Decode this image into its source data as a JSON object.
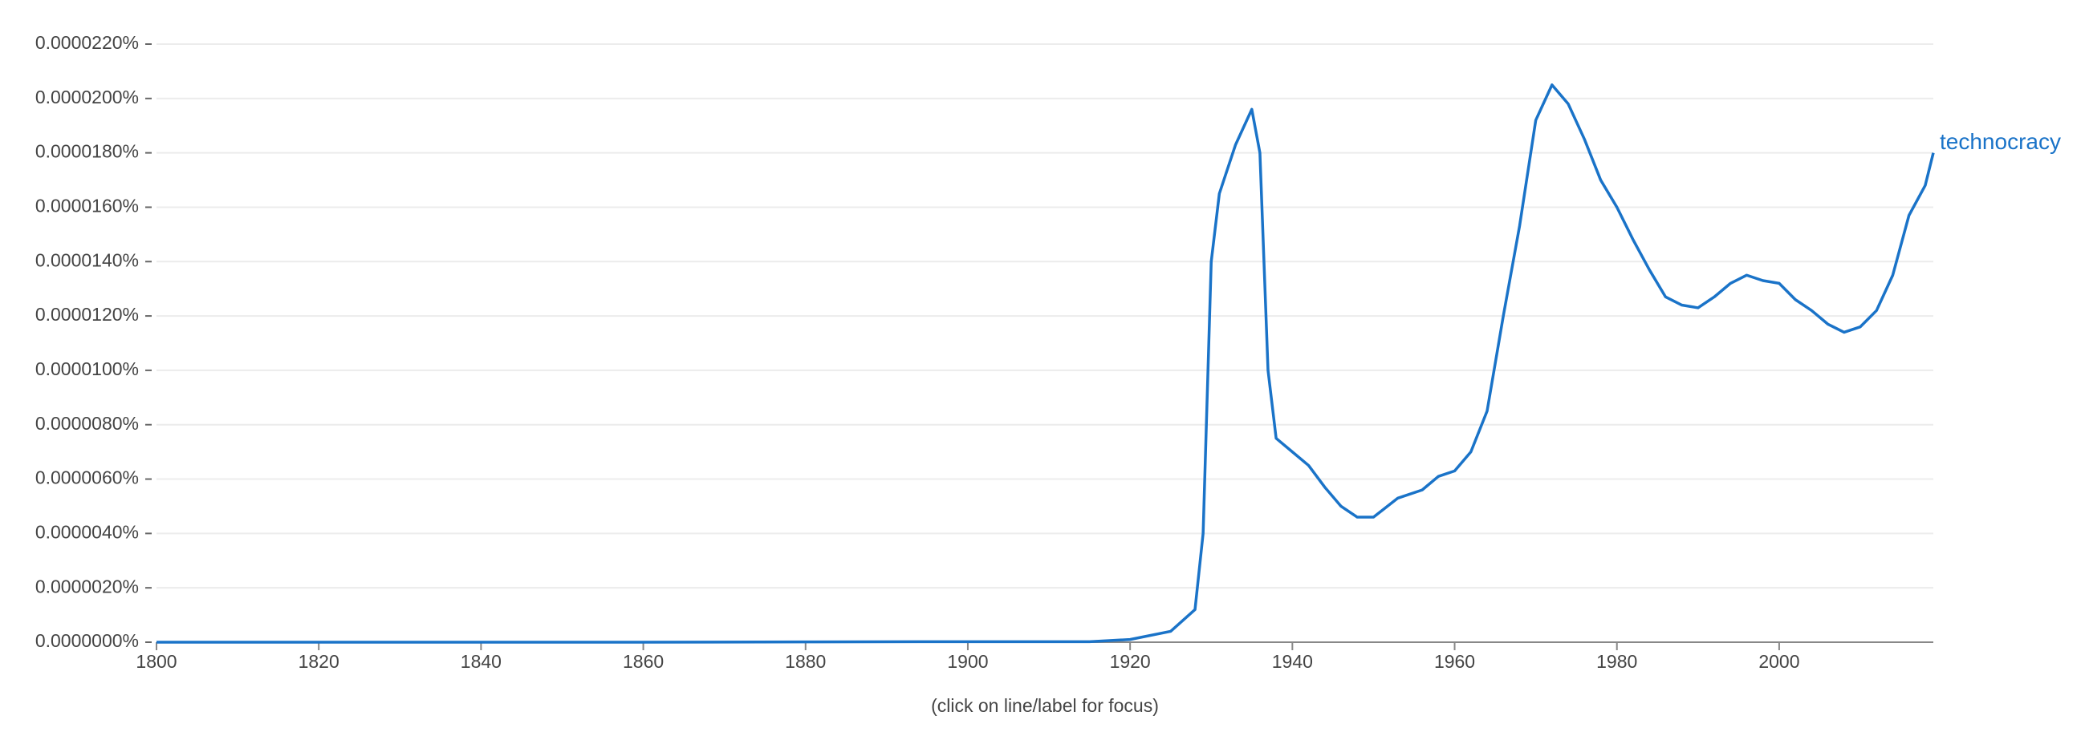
{
  "chart_data": {
    "type": "line",
    "x": [
      1800,
      1820,
      1840,
      1860,
      1880,
      1900,
      1915,
      1920,
      1925,
      1928,
      1929,
      1930,
      1931,
      1933,
      1935,
      1936,
      1937,
      1938,
      1940,
      1942,
      1944,
      1946,
      1948,
      1950,
      1953,
      1956,
      1958,
      1960,
      1962,
      1964,
      1966,
      1968,
      1970,
      1972,
      1974,
      1976,
      1978,
      1980,
      1982,
      1984,
      1986,
      1988,
      1990,
      1992,
      1994,
      1996,
      1998,
      2000,
      2002,
      2004,
      2006,
      2008,
      2010,
      2012,
      2014,
      2016,
      2018,
      2019
    ],
    "series": [
      {
        "name": "technocracy",
        "color": "#1a73c8",
        "values": [
          0,
          0,
          0,
          0,
          1e-08,
          2e-08,
          2e-08,
          1e-07,
          4e-07,
          1.2e-06,
          4e-06,
          1.4e-05,
          1.65e-05,
          1.83e-05,
          1.96e-05,
          1.8e-05,
          1e-05,
          7.5e-06,
          7e-06,
          6.5e-06,
          5.7e-06,
          5e-06,
          4.6e-06,
          4.6e-06,
          5.3e-06,
          5.6e-06,
          6.1e-06,
          6.3e-06,
          7e-06,
          8.5e-06,
          1.2e-05,
          1.53e-05,
          1.92e-05,
          2.05e-05,
          1.98e-05,
          1.85e-05,
          1.7e-05,
          1.6e-05,
          1.48e-05,
          1.37e-05,
          1.27e-05,
          1.24e-05,
          1.23e-05,
          1.27e-05,
          1.32e-05,
          1.35e-05,
          1.33e-05,
          1.32e-05,
          1.26e-05,
          1.22e-05,
          1.17e-05,
          1.14e-05,
          1.16e-05,
          1.22e-05,
          1.35e-05,
          1.57e-05,
          1.68e-05,
          1.8e-05
        ]
      }
    ],
    "xlim": [
      1800,
      2019
    ],
    "xticks": [
      1800,
      1820,
      1840,
      1860,
      1880,
      1900,
      1920,
      1940,
      1960,
      1980,
      2000
    ],
    "ylim": [
      0,
      2.2e-05
    ],
    "yticks": [
      {
        "value": 0,
        "label": "0.0000000%"
      },
      {
        "value": 2e-06,
        "label": "0.0000020%"
      },
      {
        "value": 4e-06,
        "label": "0.0000040%"
      },
      {
        "value": 6e-06,
        "label": "0.0000060%"
      },
      {
        "value": 8e-06,
        "label": "0.0000080%"
      },
      {
        "value": 1e-05,
        "label": "0.0000100%"
      },
      {
        "value": 1.2e-05,
        "label": "0.0000120%"
      },
      {
        "value": 1.4e-05,
        "label": "0.0000140%"
      },
      {
        "value": 1.6e-05,
        "label": "0.0000160%"
      },
      {
        "value": 1.8e-05,
        "label": "0.0000180%"
      },
      {
        "value": 2e-05,
        "label": "0.0000200%"
      },
      {
        "value": 2.2e-05,
        "label": "0.0000220%"
      }
    ],
    "grid": true,
    "note": "(click on line/label for focus)"
  }
}
